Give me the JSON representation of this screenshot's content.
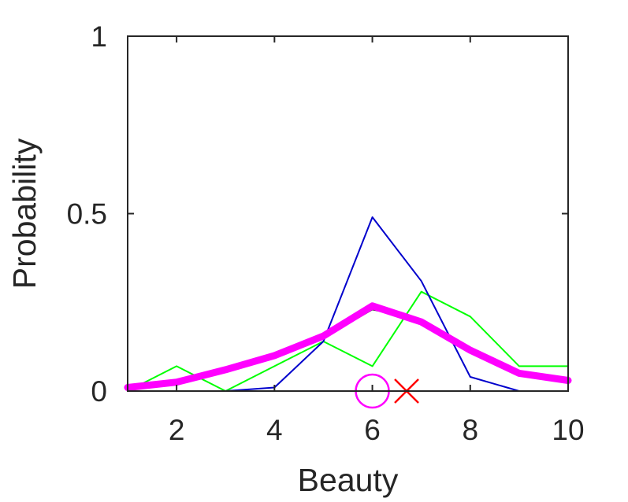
{
  "chart_data": {
    "type": "line",
    "title": "",
    "xlabel": "Beauty",
    "ylabel": "Probability",
    "xlim": [
      1,
      10
    ],
    "ylim": [
      0,
      1
    ],
    "xticks": [
      2,
      4,
      6,
      8,
      10
    ],
    "xtick_labels": [
      "2",
      "4",
      "6",
      "8",
      "10"
    ],
    "yticks": [
      0,
      0.5,
      1
    ],
    "ytick_labels": [
      "0",
      "0.5",
      "1"
    ],
    "grid": false,
    "legend": "none",
    "x": [
      1,
      2,
      3,
      4,
      5,
      6,
      7,
      8,
      9,
      10
    ],
    "series": [
      {
        "color": "#00ff00",
        "width": 2,
        "values": [
          0.0,
          0.07,
          0.0,
          0.07,
          0.14,
          0.07,
          0.28,
          0.21,
          0.07,
          0.07
        ]
      },
      {
        "color": "#0000cc",
        "width": 2,
        "values": [
          0.0,
          0.0,
          0.0,
          0.01,
          0.14,
          0.49,
          0.31,
          0.04,
          0.0,
          0.0
        ]
      },
      {
        "color": "#000000",
        "width": 2,
        "values": [
          0.01,
          0.02,
          0.06,
          0.1,
          0.15,
          0.23,
          0.2,
          0.12,
          0.05,
          0.03
        ]
      },
      {
        "color": "#ff00ff",
        "width": 9,
        "values": [
          0.01,
          0.025,
          0.06,
          0.1,
          0.155,
          0.24,
          0.195,
          0.115,
          0.05,
          0.03
        ]
      }
    ],
    "markers": [
      {
        "type": "circle",
        "x": 6.0,
        "y": 0.0,
        "color": "#ff00ff"
      },
      {
        "type": "cross",
        "x": 6.7,
        "y": 0.0,
        "color": "#ff0000"
      }
    ]
  }
}
